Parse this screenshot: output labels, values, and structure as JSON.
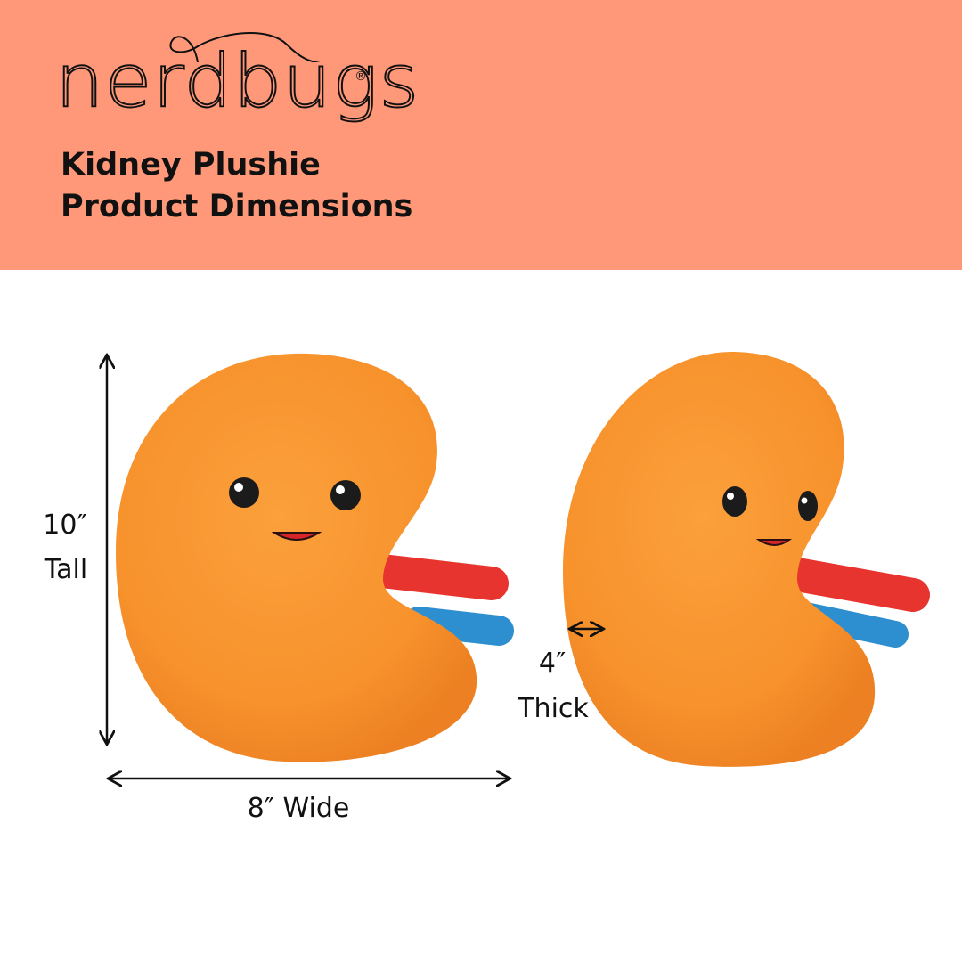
{
  "brand": {
    "logo_text": "nerdbugs",
    "registered_mark": "®"
  },
  "header": {
    "title_line1": "Kidney Plushie",
    "title_line2": "Product Dimensions"
  },
  "dimensions": {
    "height_value": "10″",
    "height_label": "Tall",
    "width_label": "8″ Wide",
    "thickness_value": "4″",
    "thickness_label": "Thick"
  },
  "colors": {
    "header_bg": "#FF9878",
    "plush_orange": "#F9922E",
    "artery_red": "#E8342E",
    "vein_blue": "#2D8FCF"
  }
}
